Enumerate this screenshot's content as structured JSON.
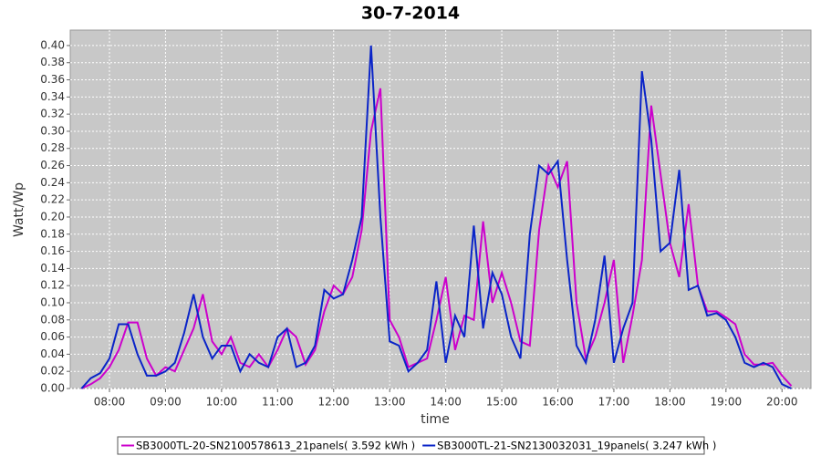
{
  "chart_data": {
    "type": "line",
    "title": "30-7-2014",
    "xlabel": "time",
    "ylabel": "Watt/Wp",
    "x": [
      450,
      460,
      470,
      480,
      490,
      500,
      510,
      520,
      530,
      540,
      550,
      560,
      570,
      580,
      590,
      600,
      610,
      620,
      630,
      640,
      650,
      660,
      670,
      680,
      690,
      700,
      710,
      720,
      730,
      740,
      750,
      760,
      770,
      780,
      790,
      800,
      810,
      820,
      830,
      840,
      850,
      860,
      870,
      880,
      890,
      900,
      910,
      920,
      930,
      940,
      950,
      960,
      970,
      980,
      990,
      1000,
      1010,
      1020,
      1030,
      1040,
      1050,
      1060,
      1070,
      1080,
      1090,
      1100,
      1110,
      1120,
      1130,
      1140,
      1150,
      1160,
      1170,
      1180,
      1190,
      1200,
      1210
    ],
    "series": [
      {
        "name": "SB3000TL-20-SN2100578613_21panels( 3.592 kWh )",
        "color": "#cc00cc",
        "values": [
          0.0,
          0.005,
          0.012,
          0.025,
          0.045,
          0.077,
          0.077,
          0.035,
          0.015,
          0.025,
          0.02,
          0.045,
          0.07,
          0.11,
          0.055,
          0.04,
          0.06,
          0.03,
          0.025,
          0.04,
          0.025,
          0.045,
          0.07,
          0.06,
          0.028,
          0.045,
          0.09,
          0.12,
          0.11,
          0.13,
          0.185,
          0.3,
          0.35,
          0.08,
          0.06,
          0.025,
          0.03,
          0.035,
          0.08,
          0.13,
          0.045,
          0.085,
          0.08,
          0.195,
          0.1,
          0.135,
          0.1,
          0.055,
          0.05,
          0.185,
          0.26,
          0.235,
          0.265,
          0.1,
          0.035,
          0.06,
          0.1,
          0.15,
          0.03,
          0.085,
          0.15,
          0.33,
          0.25,
          0.17,
          0.13,
          0.215,
          0.12,
          0.09,
          0.09,
          0.083,
          0.075,
          0.04,
          0.028,
          0.028,
          0.03,
          0.015,
          0.003
        ]
      },
      {
        "name": "SB3000TL-21-SN2130032031_19panels( 3.247 kWh )",
        "color": "#0a24c8",
        "values": [
          0.0,
          0.012,
          0.018,
          0.035,
          0.075,
          0.075,
          0.04,
          0.015,
          0.015,
          0.02,
          0.03,
          0.065,
          0.11,
          0.06,
          0.035,
          0.05,
          0.05,
          0.02,
          0.04,
          0.03,
          0.025,
          0.06,
          0.07,
          0.025,
          0.03,
          0.05,
          0.115,
          0.105,
          0.11,
          0.15,
          0.2,
          0.4,
          0.2,
          0.055,
          0.05,
          0.02,
          0.03,
          0.045,
          0.125,
          0.03,
          0.085,
          0.06,
          0.19,
          0.07,
          0.135,
          0.11,
          0.06,
          0.035,
          0.18,
          0.26,
          0.25,
          0.265,
          0.15,
          0.05,
          0.03,
          0.08,
          0.155,
          0.03,
          0.07,
          0.1,
          0.37,
          0.29,
          0.16,
          0.17,
          0.255,
          0.115,
          0.12,
          0.085,
          0.088,
          0.08,
          0.06,
          0.03,
          0.025,
          0.03,
          0.025,
          0.005,
          0.0
        ]
      }
    ],
    "xlim": [
      438,
      1231
    ],
    "xticks": [
      {
        "value": 480,
        "label": "08:00"
      },
      {
        "value": 540,
        "label": "09:00"
      },
      {
        "value": 600,
        "label": "10:00"
      },
      {
        "value": 660,
        "label": "11:00"
      },
      {
        "value": 720,
        "label": "12:00"
      },
      {
        "value": 780,
        "label": "13:00"
      },
      {
        "value": 840,
        "label": "14:00"
      },
      {
        "value": 900,
        "label": "15:00"
      },
      {
        "value": 960,
        "label": "16:00"
      },
      {
        "value": 1020,
        "label": "17:00"
      },
      {
        "value": 1080,
        "label": "18:00"
      },
      {
        "value": 1140,
        "label": "19:00"
      },
      {
        "value": 1200,
        "label": "20:00"
      }
    ],
    "ylim": [
      0,
      0.418
    ],
    "yticks": [
      {
        "value": 0,
        "label": "0.00"
      },
      0.02,
      0.04,
      0.06,
      0.08,
      {
        "value": 0.1,
        "label": "0.10"
      },
      0.12,
      0.14,
      0.16,
      0.18,
      {
        "value": 0.2,
        "label": "0.20"
      },
      0.22,
      0.24,
      0.26,
      0.28,
      {
        "value": 0.3,
        "label": "0.30"
      },
      0.32,
      0.34,
      0.36,
      0.38,
      {
        "value": 0.4,
        "label": "0.40"
      }
    ],
    "grid": true,
    "legend": "bottom"
  }
}
